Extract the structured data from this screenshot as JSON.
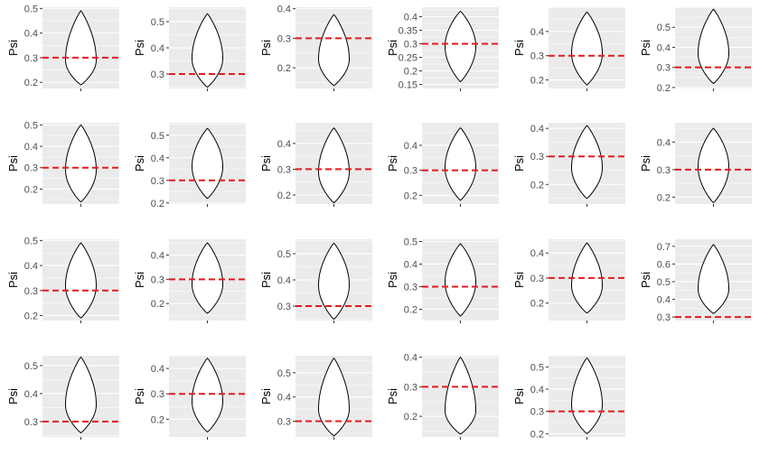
{
  "colors": {
    "panel_bg": "#ebebeb",
    "grid_major": "#ffffff",
    "violin_fill": "#ffffff",
    "violin_stroke": "#000000",
    "reference_line": "#e41a1c",
    "tick_text": "#4d4d4d"
  },
  "chart_data": [
    {
      "type": "violin",
      "ylabel": "Psi",
      "yticks": [
        0.2,
        0.3,
        0.4,
        0.5
      ],
      "ylim": [
        0.175,
        0.505
      ],
      "ref": 0.3,
      "violin": {
        "min": 0.19,
        "max": 0.49,
        "mode": 0.29
      }
    },
    {
      "type": "violin",
      "ylabel": "Psi",
      "yticks": [
        0.3,
        0.4,
        0.5
      ],
      "ylim": [
        0.245,
        0.555
      ],
      "ref": 0.3,
      "violin": {
        "min": 0.25,
        "max": 0.53,
        "mode": 0.36
      }
    },
    {
      "type": "violin",
      "ylabel": "Psi",
      "yticks": [
        0.2,
        0.3,
        0.4
      ],
      "ylim": [
        0.13,
        0.405
      ],
      "ref": 0.3,
      "violin": {
        "min": 0.14,
        "max": 0.38,
        "mode": 0.23
      }
    },
    {
      "type": "violin",
      "ylabel": "Psi",
      "yticks": [
        0.15,
        0.2,
        0.25,
        0.3,
        0.35,
        0.4
      ],
      "ylim": [
        0.135,
        0.435
      ],
      "ref": 0.3,
      "violin": {
        "min": 0.16,
        "max": 0.42,
        "mode": 0.29
      }
    },
    {
      "type": "violin",
      "ylabel": "Psi",
      "yticks": [
        0.2,
        0.3,
        0.4
      ],
      "ylim": [
        0.165,
        0.5
      ],
      "ref": 0.3,
      "violin": {
        "min": 0.18,
        "max": 0.48,
        "mode": 0.31
      }
    },
    {
      "type": "violin",
      "ylabel": "Psi",
      "yticks": [
        0.2,
        0.3,
        0.4,
        0.5
      ],
      "ylim": [
        0.195,
        0.6
      ],
      "ref": 0.3,
      "violin": {
        "min": 0.22,
        "max": 0.59,
        "mode": 0.37
      }
    },
    {
      "type": "violin",
      "ylabel": "Psi",
      "yticks": [
        0.2,
        0.3,
        0.4,
        0.5
      ],
      "ylim": [
        0.13,
        0.51
      ],
      "ref": 0.3,
      "violin": {
        "min": 0.14,
        "max": 0.5,
        "mode": 0.29
      }
    },
    {
      "type": "violin",
      "ylabel": "Psi",
      "yticks": [
        0.2,
        0.3,
        0.4,
        0.5
      ],
      "ylim": [
        0.195,
        0.555
      ],
      "ref": 0.3,
      "violin": {
        "min": 0.22,
        "max": 0.53,
        "mode": 0.36
      }
    },
    {
      "type": "violin",
      "ylabel": "Psi",
      "yticks": [
        0.2,
        0.3,
        0.4
      ],
      "ylim": [
        0.165,
        0.48
      ],
      "ref": 0.3,
      "violin": {
        "min": 0.17,
        "max": 0.46,
        "mode": 0.29
      }
    },
    {
      "type": "violin",
      "ylabel": "Psi",
      "yticks": [
        0.2,
        0.3,
        0.4
      ],
      "ylim": [
        0.165,
        0.49
      ],
      "ref": 0.3,
      "violin": {
        "min": 0.18,
        "max": 0.47,
        "mode": 0.31
      }
    },
    {
      "type": "violin",
      "ylabel": "Psi",
      "yticks": [
        0.2,
        0.3,
        0.4
      ],
      "ylim": [
        0.13,
        0.42
      ],
      "ref": 0.3,
      "violin": {
        "min": 0.15,
        "max": 0.41,
        "mode": 0.26
      }
    },
    {
      "type": "violin",
      "ylabel": "Psi",
      "yticks": [
        0.2,
        0.3,
        0.4
      ],
      "ylim": [
        0.175,
        0.47
      ],
      "ref": 0.3,
      "violin": {
        "min": 0.18,
        "max": 0.45,
        "mode": 0.31
      }
    },
    {
      "type": "violin",
      "ylabel": "Psi",
      "yticks": [
        0.2,
        0.3,
        0.4,
        0.5
      ],
      "ylim": [
        0.18,
        0.505
      ],
      "ref": 0.3,
      "violin": {
        "min": 0.19,
        "max": 0.49,
        "mode": 0.32
      }
    },
    {
      "type": "violin",
      "ylabel": "Psi",
      "yticks": [
        0.2,
        0.3,
        0.4
      ],
      "ylim": [
        0.13,
        0.465
      ],
      "ref": 0.3,
      "violin": {
        "min": 0.16,
        "max": 0.45,
        "mode": 0.28
      }
    },
    {
      "type": "violin",
      "ylabel": "Psi",
      "yticks": [
        0.3,
        0.4,
        0.5
      ],
      "ylim": [
        0.245,
        0.555
      ],
      "ref": 0.3,
      "violin": {
        "min": 0.25,
        "max": 0.54,
        "mode": 0.38
      }
    },
    {
      "type": "violin",
      "ylabel": "Psi",
      "yticks": [
        0.2,
        0.3,
        0.4,
        0.5
      ],
      "ylim": [
        0.15,
        0.51
      ],
      "ref": 0.3,
      "violin": {
        "min": 0.17,
        "max": 0.49,
        "mode": 0.32
      }
    },
    {
      "type": "violin",
      "ylabel": "Psi",
      "yticks": [
        0.2,
        0.3,
        0.4
      ],
      "ylim": [
        0.13,
        0.455
      ],
      "ref": 0.3,
      "violin": {
        "min": 0.16,
        "max": 0.44,
        "mode": 0.27
      }
    },
    {
      "type": "violin",
      "ylabel": "Psi",
      "yticks": [
        0.3,
        0.4,
        0.5,
        0.6,
        0.7
      ],
      "ylim": [
        0.28,
        0.74
      ],
      "ref": 0.3,
      "violin": {
        "min": 0.32,
        "max": 0.71,
        "mode": 0.46
      }
    },
    {
      "type": "violin",
      "ylabel": "Psi",
      "yticks": [
        0.3,
        0.4,
        0.5
      ],
      "ylim": [
        0.245,
        0.535
      ],
      "ref": 0.3,
      "violin": {
        "min": 0.26,
        "max": 0.53,
        "mode": 0.36
      }
    },
    {
      "type": "violin",
      "ylabel": "Psi",
      "yticks": [
        0.2,
        0.3,
        0.4
      ],
      "ylim": [
        0.13,
        0.45
      ],
      "ref": 0.3,
      "violin": {
        "min": 0.15,
        "max": 0.44,
        "mode": 0.27
      }
    },
    {
      "type": "violin",
      "ylabel": "Psi",
      "yticks": [
        0.3,
        0.4,
        0.5
      ],
      "ylim": [
        0.235,
        0.57
      ],
      "ref": 0.3,
      "violin": {
        "min": 0.24,
        "max": 0.56,
        "mode": 0.35
      }
    },
    {
      "type": "violin",
      "ylabel": "Psi",
      "yticks": [
        0.2,
        0.3,
        0.4
      ],
      "ylim": [
        0.13,
        0.405
      ],
      "ref": 0.3,
      "violin": {
        "min": 0.14,
        "max": 0.4,
        "mode": 0.22
      }
    },
    {
      "type": "violin",
      "ylabel": "Psi",
      "yticks": [
        0.2,
        0.3,
        0.4,
        0.5
      ],
      "ylim": [
        0.185,
        0.55
      ],
      "ref": 0.3,
      "violin": {
        "min": 0.2,
        "max": 0.54,
        "mode": 0.33
      }
    }
  ]
}
